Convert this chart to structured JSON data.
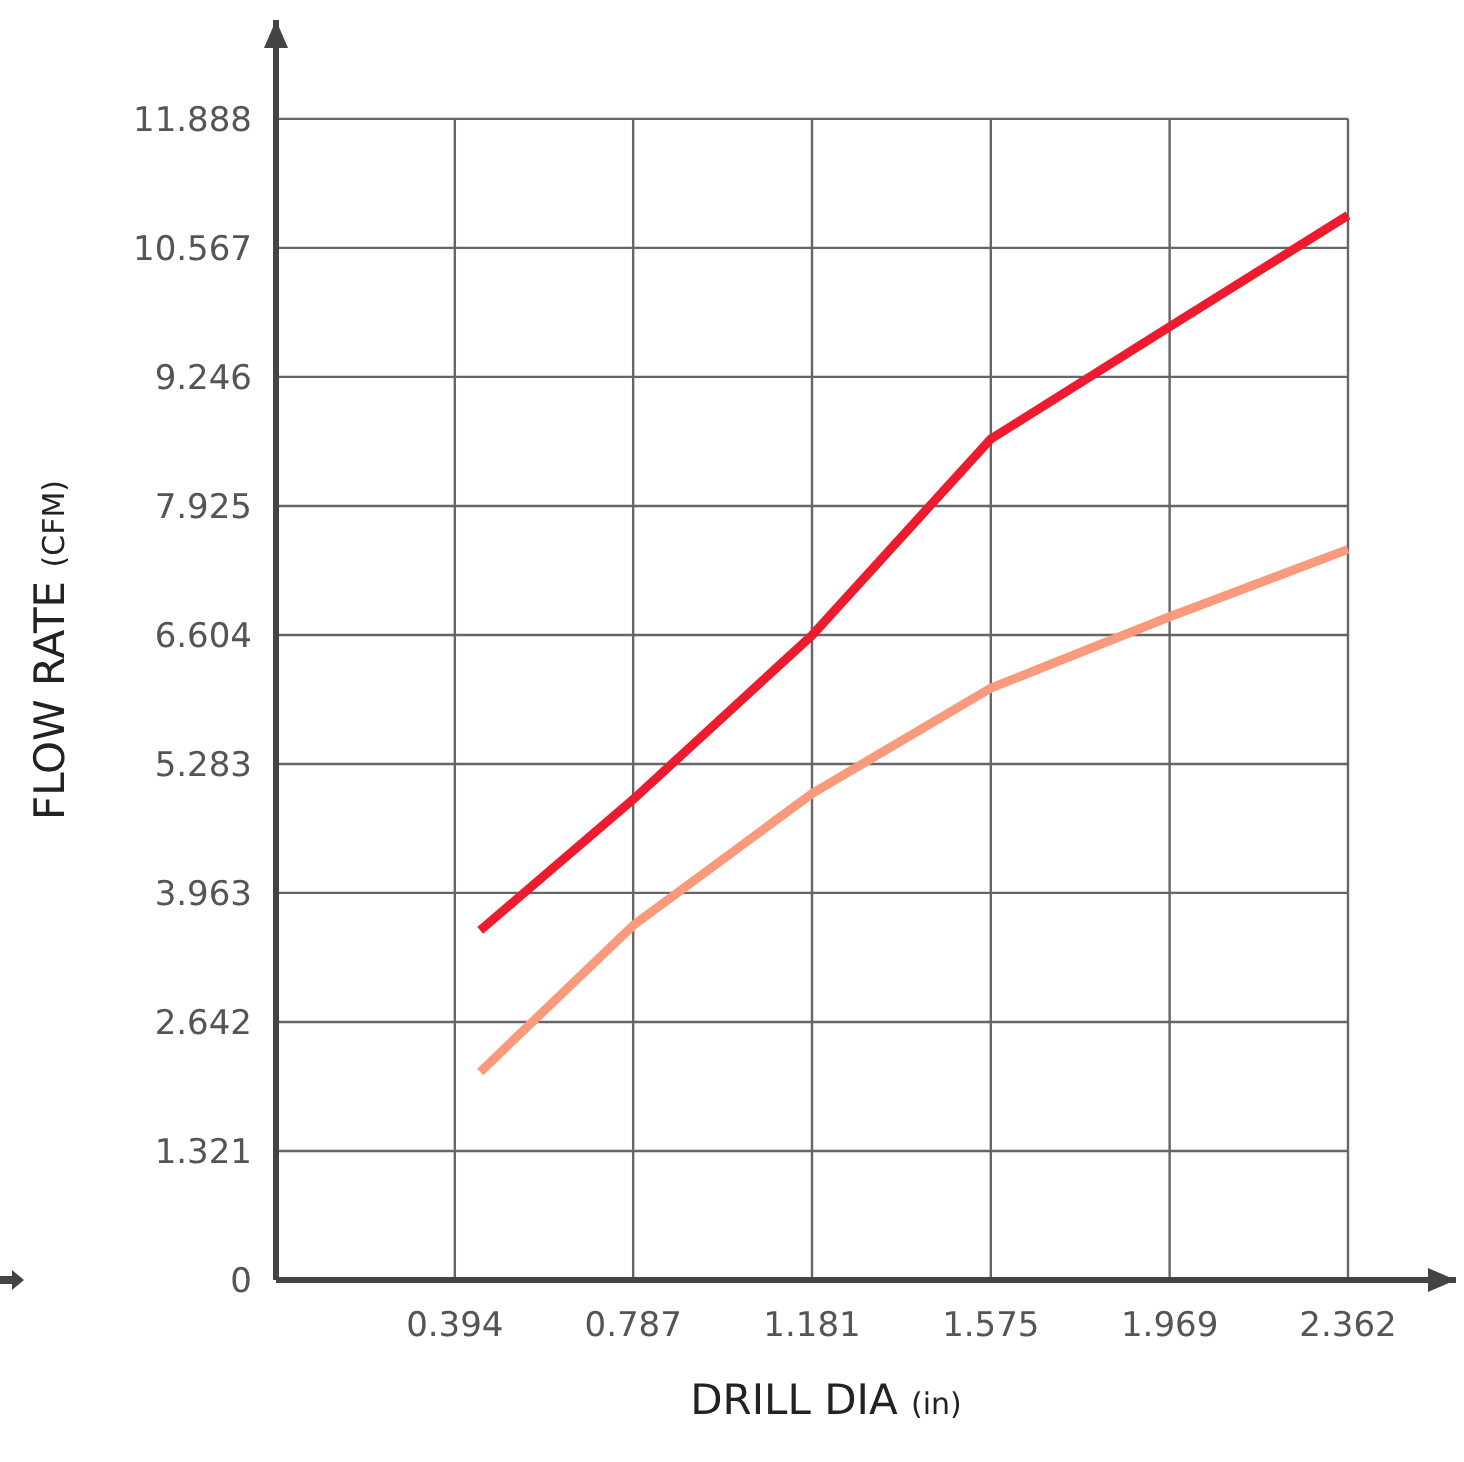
{
  "chart_data": {
    "type": "line",
    "xlabel": "DRILL DIA (in)",
    "ylabel": "FLOW RATE (CFM)",
    "x": [
      0.45,
      0.787,
      1.181,
      1.575,
      1.969,
      2.362
    ],
    "series": [
      {
        "color": "#ee1a2e",
        "values": [
          3.58,
          4.92,
          6.6,
          8.61,
          9.76,
          10.9
        ]
      },
      {
        "color": "#f99a7c",
        "values": [
          2.13,
          3.63,
          4.98,
          6.06,
          6.79,
          7.48
        ]
      }
    ],
    "xlim": [
      0,
      2.6
    ],
    "xticks": [
      0.394,
      0.787,
      1.181,
      1.575,
      1.969,
      2.362
    ],
    "ylim": [
      0,
      12.9
    ],
    "yticks": [
      0,
      1.321,
      2.642,
      3.963,
      5.283,
      6.604,
      7.925,
      9.246,
      10.567,
      11.888
    ],
    "grid": true,
    "line_style": "solid"
  }
}
